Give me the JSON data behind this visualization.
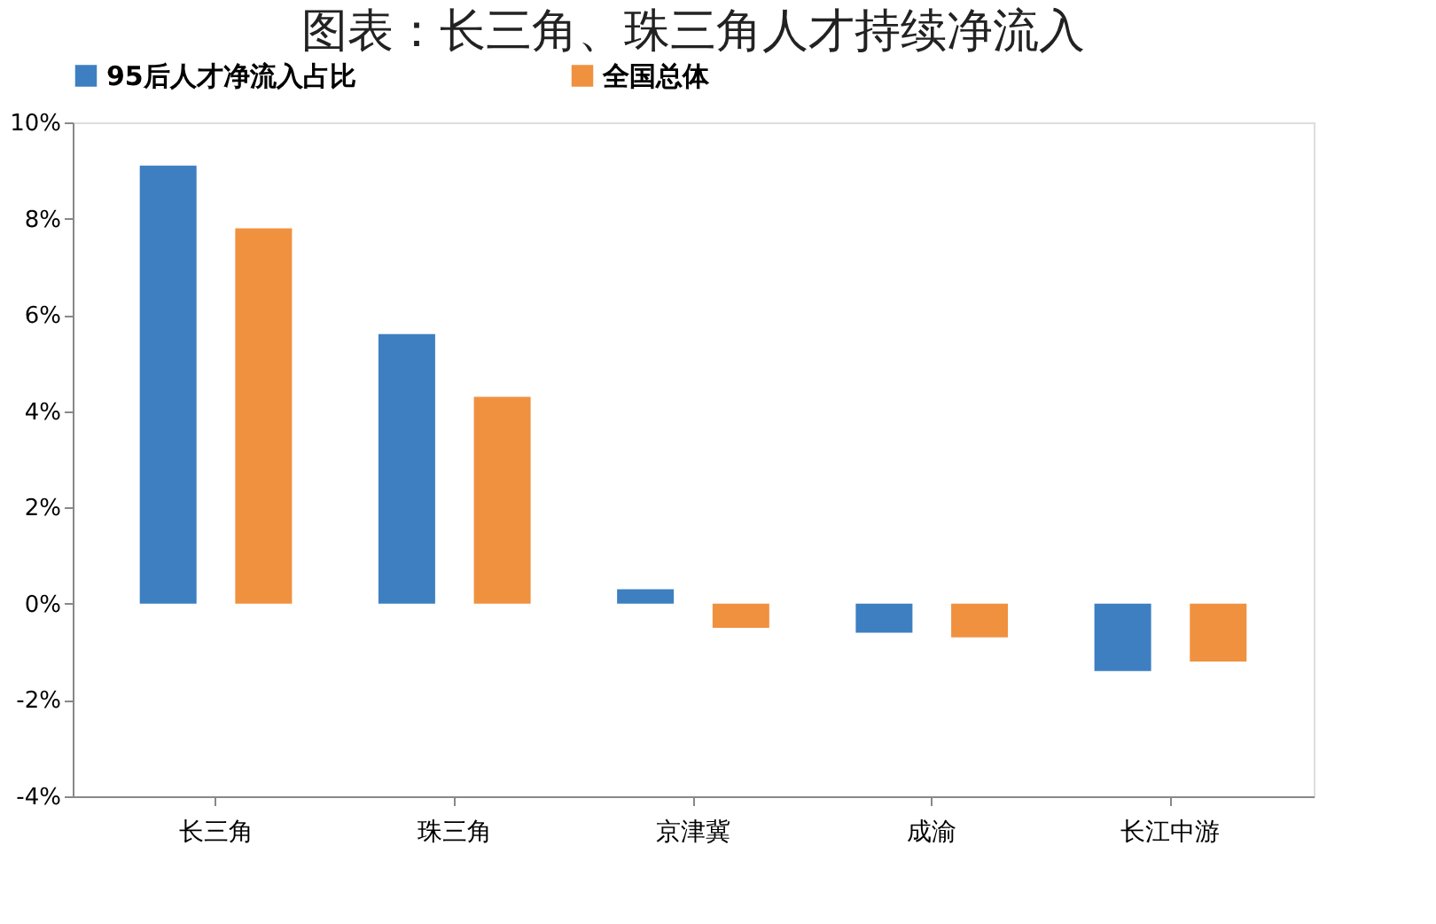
{
  "chart_data": {
    "type": "bar",
    "title": "图表：长三角、珠三角人才持续净流入",
    "categories": [
      "长三角",
      "珠三角",
      "京津冀",
      "成渝",
      "长江中游"
    ],
    "series": [
      {
        "name": "95后人才净流入占比",
        "color": "#3d7fc1",
        "values": [
          9.1,
          5.6,
          0.3,
          -0.6,
          -1.4
        ]
      },
      {
        "name": "全国总体",
        "color": "#f0913f",
        "values": [
          7.8,
          4.3,
          -0.5,
          -0.7,
          -1.2
        ]
      }
    ],
    "ylim": [
      -4,
      10
    ],
    "yticks": [
      {
        "value": -4,
        "label": "-4%"
      },
      {
        "value": -2,
        "label": "-2%"
      },
      {
        "value": 0,
        "label": "0%"
      },
      {
        "value": 2,
        "label": "2%"
      },
      {
        "value": 4,
        "label": "4%"
      },
      {
        "value": 6,
        "label": "6%"
      },
      {
        "value": 8,
        "label": "8%"
      },
      {
        "value": 10,
        "label": "10%"
      }
    ],
    "grid": false,
    "legend": "top"
  }
}
